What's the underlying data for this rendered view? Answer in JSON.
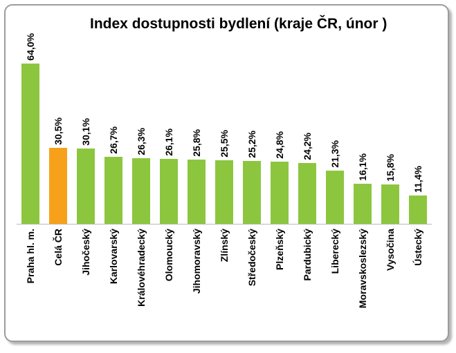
{
  "title": "Index dostupnosti bydlení (kraje ČR, únor )",
  "chart_data": {
    "type": "bar",
    "title": "Index dostupnosti bydlení (kraje ČR, únor )",
    "categories": [
      "Praha hl. m.",
      "Celá ČR",
      "Jihočeský",
      "Karlovarský",
      "Královéhradecký",
      "Olomoucký",
      "Jihomoravský",
      "Zlínský",
      "Středočeský",
      "Plzeňský",
      "Pardubický",
      "Liberecký",
      "Moravskoslezský",
      "Vysočina",
      "Ústecký"
    ],
    "values": [
      64.0,
      30.5,
      30.1,
      26.7,
      26.3,
      26.1,
      25.8,
      25.5,
      25.2,
      24.8,
      24.2,
      21.3,
      16.1,
      15.8,
      11.4
    ],
    "value_labels": [
      "64,0%",
      "30,5%",
      "30,1%",
      "26,7%",
      "26,3%",
      "26,1%",
      "25,8%",
      "25,5%",
      "25,2%",
      "24,8%",
      "24,2%",
      "21,3%",
      "16,1%",
      "15,8%",
      "11,4%"
    ],
    "highlight_index": 1,
    "colors": {
      "bar": "#8cc63f",
      "highlight": "#f7a11a"
    },
    "xlabel": "",
    "ylabel": "",
    "ylim": [
      0,
      70
    ],
    "grid": false,
    "legend": "none",
    "value_label_rotation": 90,
    "category_label_rotation": 90
  }
}
